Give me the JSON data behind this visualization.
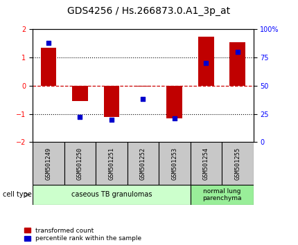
{
  "title": "GDS4256 / Hs.266873.0.A1_3p_at",
  "samples": [
    "GSM501249",
    "GSM501250",
    "GSM501251",
    "GSM501252",
    "GSM501253",
    "GSM501254",
    "GSM501255"
  ],
  "transformed_count": [
    1.35,
    -0.55,
    -1.1,
    -0.02,
    -1.15,
    1.75,
    1.55
  ],
  "percentile_rank": [
    88,
    22,
    20,
    38,
    21,
    70,
    80
  ],
  "ylim_left": [
    -2,
    2
  ],
  "ylim_right": [
    0,
    100
  ],
  "bar_color": "#C00000",
  "dot_color": "#0000CC",
  "dashed_line_color": "#CC0000",
  "dotted_line_color": "#000000",
  "group1_label": "caseous TB granulomas",
  "group2_label": "normal lung\nparenchyma",
  "group1_samples": 5,
  "group2_samples": 2,
  "group1_color": "#CCFFCC",
  "group2_color": "#99EE99",
  "cell_type_label": "cell type",
  "legend_red": "transformed count",
  "legend_blue": "percentile rank within the sample",
  "title_fontsize": 10,
  "tick_fontsize": 7,
  "bar_width": 0.5
}
